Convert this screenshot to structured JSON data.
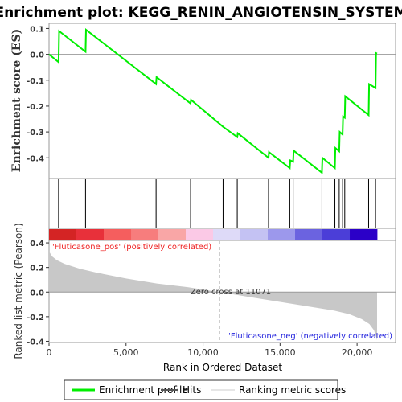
{
  "chart_data": {
    "type": "line",
    "title": "Enrichment plot: KEGG_RENIN_ANGIOTENSIN_SYSTEM",
    "xlabel": "Rank in Ordered Dataset",
    "x_ticks": [
      0,
      5000,
      10000,
      15000,
      20000
    ],
    "x_tick_labels": [
      "0",
      "5,000",
      "10,000",
      "15,000",
      "20,000"
    ],
    "xlim": [
      0,
      22500
    ],
    "n_genes": 21300,
    "es_panel": {
      "ylabel": "Enrichment score (ES)",
      "ylim": [
        -0.48,
        0.12
      ],
      "y_ticks": [
        0.1,
        0.0,
        -0.1,
        -0.2,
        -0.3,
        -0.4
      ],
      "y_tick_labels": [
        "0.1",
        "0.0",
        "-0.1",
        "-0.2",
        "-0.3",
        "-0.4"
      ],
      "zero_line": true
    },
    "series": [
      {
        "name": "Enrichment profile",
        "color": "#00ee00",
        "x": [
          0,
          620,
          650,
          2370,
          2400,
          6950,
          6980,
          9190,
          9220,
          11300,
          12220,
          12250,
          14250,
          14280,
          15630,
          15660,
          15850,
          15880,
          17720,
          17750,
          18560,
          18590,
          18840,
          18870,
          19060,
          19090,
          19200,
          19230,
          20750,
          20780,
          21200,
          21230,
          21300
        ],
        "y": [
          0.0,
          -0.03,
          0.09,
          0.01,
          0.095,
          -0.115,
          -0.088,
          -0.19,
          -0.176,
          -0.28,
          -0.32,
          -0.305,
          -0.4,
          -0.378,
          -0.44,
          -0.41,
          -0.415,
          -0.372,
          -0.458,
          -0.4,
          -0.44,
          -0.362,
          -0.375,
          -0.3,
          -0.31,
          -0.24,
          -0.245,
          -0.162,
          -0.235,
          -0.115,
          -0.13,
          0.005,
          0.003
        ]
      }
    ],
    "hits": [
      620,
      2370,
      6950,
      9190,
      11300,
      12220,
      14250,
      15630,
      15850,
      17720,
      18560,
      18840,
      19060,
      19200,
      20750,
      21200
    ],
    "heatmap_colors": [
      "#d42424",
      "#e8303a",
      "#f55e5e",
      "#f77d7d",
      "#f9a6a6",
      "#fbc9e6",
      "#dedaf8",
      "#c4c2f3",
      "#9c98ec",
      "#6b63e0",
      "#4b3ed8",
      "#2b00c8"
    ],
    "metric_panel": {
      "ylabel": "Ranked list metric (Pearson)",
      "ylim": [
        -0.41,
        0.42
      ],
      "y_ticks": [
        0.4,
        0.2,
        0.0,
        -0.2,
        -0.4
      ],
      "y_tick_labels": [
        "0.4",
        "0.2",
        "0.0",
        "-0.2",
        "-0.4"
      ],
      "zero_cross": 11071,
      "zero_cross_label": "Zero cross at 11071",
      "pos_label": "'Fluticasone_pos' (positively correlated)",
      "neg_label": "'Fluticasone_neg' (negatively correlated)",
      "pos_color": "#ee2222",
      "neg_color": "#2222dd",
      "curve_x": [
        0,
        200,
        500,
        1000,
        2000,
        3000,
        5000,
        7000,
        9000,
        11071,
        13000,
        15000,
        17000,
        18500,
        19500,
        20300,
        20800,
        21100,
        21300
      ],
      "curve_y": [
        0.33,
        0.29,
        0.26,
        0.23,
        0.19,
        0.16,
        0.11,
        0.07,
        0.04,
        0.0,
        -0.04,
        -0.08,
        -0.12,
        -0.15,
        -0.18,
        -0.22,
        -0.26,
        -0.31,
        -0.39
      ]
    },
    "legend": {
      "placement": "bottom",
      "items": [
        {
          "label": "Enrichment profile",
          "color": "#00ee00"
        },
        {
          "label": "Hits",
          "color": "#555555"
        },
        {
          "label": "Ranking metric scores",
          "color": "#cccccc"
        }
      ]
    }
  }
}
